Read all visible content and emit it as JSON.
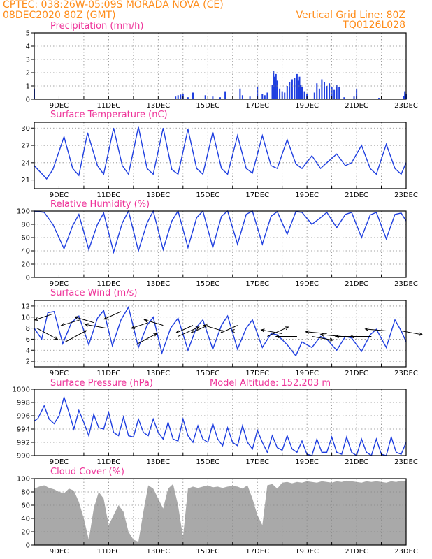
{
  "header": {
    "line1_left": "CPTEC:  038:26W-05:09S   MORADA NOVA (CE)",
    "line2_left": "08DEC2020 80Z (GMT)",
    "line1_right": "Vertical Grid Line: 80Z",
    "line2_right": "TQ0126L028"
  },
  "colors": {
    "header": "#ff8c19",
    "title": "#ee3399",
    "series": "#1f3fe0",
    "cloud": "#a9a9a9"
  },
  "x_axis": {
    "start_day": 8,
    "end_day": 23,
    "tick_labels": [
      "9DEC",
      "11DEC",
      "13DEC",
      "15DEC",
      "17DEC",
      "19DEC",
      "21DEC",
      "23DEC"
    ],
    "tick_days": [
      9,
      11,
      13,
      15,
      17,
      19,
      21,
      23
    ]
  },
  "chart_data": [
    {
      "id": "precip",
      "type": "bar",
      "title": "Precipitation (mm/h)",
      "ylim": [
        0,
        5
      ],
      "yticks": [
        0,
        1,
        2,
        3,
        4,
        5
      ],
      "x": [
        8.0,
        13.7,
        13.8,
        13.9,
        14.0,
        14.2,
        14.4,
        14.9,
        15.2,
        15.5,
        15.7,
        16.3,
        16.4,
        16.7,
        17.0,
        17.2,
        17.3,
        17.4,
        17.6,
        17.65,
        17.7,
        17.75,
        17.8,
        17.9,
        18.0,
        18.1,
        18.2,
        18.3,
        18.4,
        18.5,
        18.6,
        18.65,
        18.7,
        18.75,
        18.8,
        18.9,
        19.0,
        19.3,
        19.4,
        19.5,
        19.6,
        19.7,
        19.8,
        19.9,
        20.0,
        20.1,
        20.2,
        20.3,
        20.5,
        20.9,
        21.0,
        21.9,
        22.9,
        22.95,
        23.0
      ],
      "y": [
        0.8,
        0.2,
        0.3,
        0.35,
        0.4,
        0.15,
        0.5,
        0.3,
        0.2,
        0.15,
        0.6,
        0.8,
        0.3,
        0.2,
        0.9,
        0.4,
        0.3,
        0.5,
        1.1,
        2.1,
        1.7,
        1.9,
        1.4,
        0.8,
        0.6,
        0.5,
        1.0,
        1.3,
        1.5,
        1.6,
        1.9,
        1.4,
        1.7,
        1.1,
        0.9,
        0.6,
        0.4,
        0.5,
        1.2,
        0.8,
        1.5,
        1.3,
        1.0,
        1.2,
        0.9,
        0.7,
        1.1,
        0.9,
        0.15,
        0.2,
        0.8,
        0.1,
        0.25,
        0.6,
        0.4
      ]
    },
    {
      "id": "temp",
      "type": "line",
      "title": "Surface Temperature (nC)",
      "ylim": [
        19.5,
        31
      ],
      "yticks": [
        21,
        24,
        27,
        30
      ],
      "x": [
        8.0,
        8.5,
        8.75,
        9.2,
        9.55,
        9.8,
        10.15,
        10.55,
        10.8,
        11.2,
        11.55,
        11.8,
        12.2,
        12.55,
        12.8,
        13.2,
        13.55,
        13.8,
        14.2,
        14.55,
        14.8,
        15.2,
        15.55,
        15.8,
        16.2,
        16.55,
        16.8,
        17.2,
        17.55,
        17.8,
        18.2,
        18.55,
        18.8,
        19.2,
        19.55,
        19.8,
        20.2,
        20.55,
        20.8,
        21.2,
        21.55,
        21.8,
        22.2,
        22.55,
        22.8,
        23.0
      ],
      "y": [
        23.5,
        21.2,
        22.8,
        28.5,
        23.0,
        21.8,
        29.2,
        23.5,
        22.0,
        30.0,
        23.5,
        22.0,
        30.2,
        23.0,
        22.0,
        30.0,
        22.8,
        22.0,
        29.8,
        23.0,
        22.0,
        29.3,
        23.0,
        22.0,
        28.7,
        23.0,
        22.2,
        28.7,
        23.5,
        23.0,
        28.0,
        23.8,
        23.0,
        25.2,
        23.0,
        24.0,
        25.5,
        23.5,
        24.0,
        27.0,
        23.0,
        22.0,
        27.2,
        23.0,
        22.0,
        24.0
      ]
    },
    {
      "id": "rh",
      "type": "line",
      "title": "Relative Humidity (%)",
      "ylim": [
        0,
        100
      ],
      "yticks": [
        0,
        20,
        40,
        60,
        80,
        100
      ],
      "x": [
        8.0,
        8.4,
        8.75,
        9.2,
        9.55,
        9.8,
        10.2,
        10.55,
        10.8,
        11.2,
        11.55,
        11.8,
        12.2,
        12.55,
        12.8,
        13.2,
        13.55,
        13.8,
        14.2,
        14.55,
        14.8,
        15.2,
        15.55,
        15.8,
        16.2,
        16.55,
        16.8,
        17.2,
        17.55,
        17.8,
        18.2,
        18.55,
        18.8,
        19.2,
        19.55,
        19.8,
        20.2,
        20.55,
        20.8,
        21.2,
        21.55,
        21.8,
        22.2,
        22.55,
        22.8,
        23.0
      ],
      "y": [
        100,
        98,
        80,
        43,
        78,
        95,
        42,
        80,
        97,
        38,
        82,
        100,
        40,
        82,
        100,
        42,
        85,
        100,
        45,
        90,
        100,
        45,
        92,
        100,
        50,
        95,
        100,
        50,
        92,
        99,
        65,
        99,
        98,
        80,
        90,
        98,
        75,
        95,
        98,
        60,
        94,
        98,
        58,
        95,
        97,
        85
      ]
    },
    {
      "id": "wind",
      "type": "line",
      "title": "Surface Wind (m/s)",
      "ylim": [
        1,
        13
      ],
      "yticks": [
        2,
        4,
        6,
        8,
        10,
        12
      ],
      "x": [
        8.0,
        8.3,
        8.55,
        8.8,
        9.15,
        9.5,
        9.8,
        10.2,
        10.55,
        10.8,
        11.15,
        11.5,
        11.8,
        12.2,
        12.55,
        12.8,
        13.15,
        13.5,
        13.8,
        14.2,
        14.55,
        14.8,
        15.2,
        15.55,
        15.8,
        16.2,
        16.55,
        16.8,
        17.2,
        17.55,
        17.8,
        18.2,
        18.55,
        18.8,
        19.2,
        19.55,
        19.8,
        20.2,
        20.55,
        20.8,
        21.2,
        21.55,
        21.8,
        22.2,
        22.55,
        22.8,
        23.0
      ],
      "y": [
        8.0,
        6.0,
        10.8,
        11.0,
        5.2,
        9.0,
        10.2,
        5.0,
        9.8,
        11.2,
        4.8,
        9.5,
        11.8,
        4.5,
        8.5,
        10.0,
        3.5,
        8.0,
        9.8,
        4.0,
        8.2,
        9.5,
        4.2,
        8.5,
        10.2,
        4.2,
        8.0,
        9.5,
        4.5,
        7.0,
        6.8,
        5.0,
        3.0,
        5.5,
        4.5,
        6.5,
        6.0,
        4.0,
        6.5,
        6.2,
        3.8,
        6.8,
        7.8,
        4.5,
        9.5,
        7.5,
        5.5
      ],
      "vectors": {
        "x": [
          8.1,
          8.7,
          9.25,
          9.85,
          10.4,
          10.9,
          11.5,
          12.1,
          12.6,
          13.2,
          13.8,
          14.4,
          15.0,
          15.6,
          16.2,
          16.8,
          17.4,
          18.0,
          18.6,
          19.2,
          19.8,
          20.4,
          21.0,
          21.6,
          22.2,
          22.8
        ],
        "speed": [
          8.0,
          10.5,
          5.5,
          9.5,
          9.0,
          8.0,
          11.0,
          5.0,
          9.0,
          8.5,
          6.5,
          8.5,
          8.5,
          7.5,
          8.5,
          7.5,
          6.5,
          7.0,
          6.5,
          6.5,
          7.0,
          6.5,
          6.5,
          6.5,
          7.5,
          7.5
        ],
        "u": [
          1.0,
          -0.8,
          1.0,
          -0.9,
          -0.9,
          -1.0,
          -0.8,
          1.0,
          -0.8,
          -0.9,
          1.0,
          -0.8,
          -0.8,
          -0.9,
          -0.8,
          -1.0,
          1.0,
          -1.0,
          -1.0,
          1.0,
          -1.0,
          -1.0,
          -1.0,
          -1.0,
          -1.0,
          1.0
        ],
        "v": [
          -0.6,
          -0.3,
          0.6,
          -0.3,
          0.3,
          0.2,
          -0.4,
          0.6,
          -0.3,
          0.3,
          0.5,
          -0.4,
          -0.4,
          0.3,
          -0.4,
          0.0,
          0.5,
          0.2,
          0.0,
          -0.2,
          0.1,
          0.1,
          0.0,
          0.0,
          0.1,
          -0.2
        ]
      }
    },
    {
      "id": "pressure",
      "type": "line",
      "title": "Surface Pressure (hPa)",
      "annotation": "Model Altitude: 152.203 m",
      "ylim": [
        990,
        1000
      ],
      "yticks": [
        990,
        992,
        994,
        996,
        998,
        1000
      ],
      "x": [
        8.0,
        8.15,
        8.4,
        8.6,
        8.8,
        9.0,
        9.2,
        9.4,
        9.6,
        9.8,
        10.0,
        10.2,
        10.4,
        10.6,
        10.8,
        11.0,
        11.2,
        11.4,
        11.6,
        11.8,
        12.0,
        12.2,
        12.4,
        12.6,
        12.8,
        13.0,
        13.2,
        13.4,
        13.6,
        13.8,
        14.0,
        14.2,
        14.4,
        14.6,
        14.8,
        15.0,
        15.2,
        15.4,
        15.6,
        15.8,
        16.0,
        16.2,
        16.4,
        16.6,
        16.8,
        17.0,
        17.2,
        17.4,
        17.6,
        17.8,
        18.0,
        18.2,
        18.4,
        18.6,
        18.8,
        19.0,
        19.2,
        19.4,
        19.6,
        19.8,
        20.0,
        20.2,
        20.4,
        20.6,
        20.8,
        21.0,
        21.2,
        21.4,
        21.6,
        21.8,
        22.0,
        22.2,
        22.4,
        22.6,
        22.8,
        23.0
      ],
      "y": [
        995.2,
        995.6,
        997.5,
        995.5,
        994.8,
        996.0,
        998.8,
        996.5,
        994.0,
        996.8,
        995.0,
        993.0,
        996.2,
        994.2,
        994.0,
        996.5,
        993.5,
        993.0,
        995.8,
        993.0,
        992.8,
        995.5,
        993.5,
        993.0,
        995.5,
        993.5,
        992.5,
        995.0,
        992.5,
        992.2,
        995.5,
        993.0,
        992.0,
        994.5,
        992.5,
        992.0,
        994.8,
        992.5,
        991.5,
        994.2,
        992.0,
        991.5,
        994.5,
        992.0,
        991.0,
        993.8,
        992.0,
        990.5,
        993.0,
        991.2,
        990.8,
        993.0,
        991.0,
        990.5,
        992.2,
        990.2,
        990.0,
        992.5,
        990.5,
        990.5,
        992.8,
        990.5,
        990.2,
        992.8,
        990.5,
        990.0,
        992.5,
        990.5,
        990.0,
        992.5,
        990.2,
        990.0,
        992.8,
        990.5,
        990.2,
        992.0
      ]
    },
    {
      "id": "cloud",
      "type": "area",
      "title": "Cloud Cover (%)",
      "ylim": [
        0,
        100
      ],
      "yticks": [
        0,
        20,
        40,
        60,
        80,
        100
      ],
      "x": [
        8.0,
        8.2,
        8.4,
        8.6,
        8.8,
        9.0,
        9.2,
        9.4,
        9.6,
        9.8,
        10.0,
        10.2,
        10.4,
        10.6,
        10.8,
        11.0,
        11.2,
        11.4,
        11.6,
        11.8,
        12.0,
        12.2,
        12.4,
        12.6,
        12.8,
        13.0,
        13.2,
        13.4,
        13.6,
        13.8,
        14.0,
        14.2,
        14.4,
        14.6,
        14.8,
        15.0,
        15.2,
        15.4,
        15.6,
        15.8,
        16.0,
        16.2,
        16.4,
        16.6,
        16.8,
        17.0,
        17.2,
        17.4,
        17.6,
        17.8,
        18.0,
        18.2,
        18.4,
        18.6,
        18.8,
        19.0,
        19.2,
        19.4,
        19.6,
        19.8,
        20.0,
        20.2,
        20.4,
        20.6,
        20.8,
        21.0,
        21.2,
        21.4,
        21.6,
        21.8,
        22.0,
        22.2,
        22.4,
        22.6,
        22.8,
        23.0
      ],
      "y": [
        85,
        88,
        90,
        86,
        84,
        80,
        78,
        85,
        82,
        65,
        40,
        8,
        55,
        80,
        70,
        30,
        45,
        60,
        50,
        20,
        8,
        5,
        50,
        90,
        85,
        70,
        55,
        85,
        92,
        60,
        12,
        85,
        88,
        86,
        88,
        90,
        87,
        88,
        86,
        88,
        89,
        88,
        85,
        90,
        70,
        45,
        30,
        90,
        92,
        85,
        94,
        95,
        93,
        95,
        94,
        96,
        95,
        94,
        96,
        95,
        94,
        96,
        95,
        97,
        96,
        95,
        94,
        96,
        95,
        96,
        95,
        94,
        96,
        95,
        97,
        96
      ]
    }
  ]
}
